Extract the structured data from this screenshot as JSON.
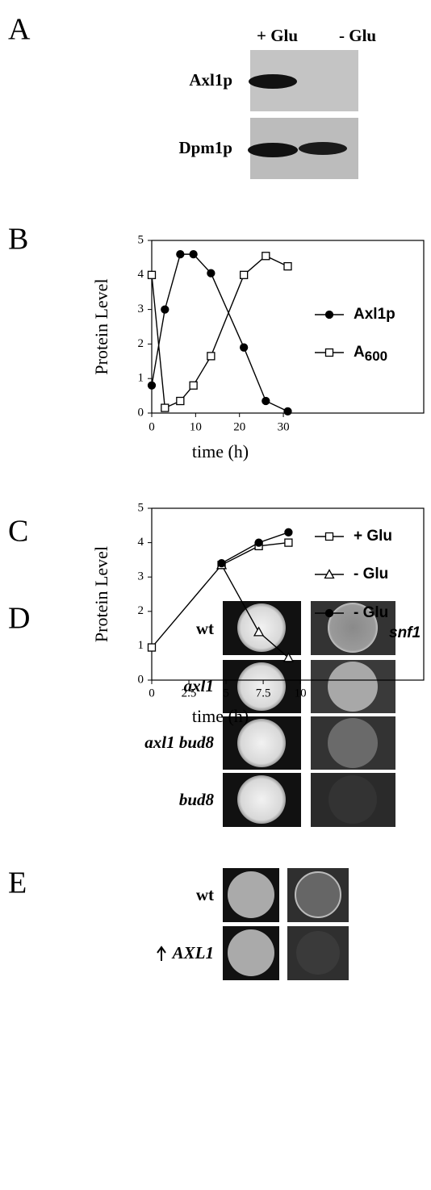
{
  "panels": {
    "a": {
      "letter": "A",
      "lanes": [
        "+ Glu",
        "- Glu"
      ],
      "rows": [
        "Axl1p",
        "Dpm1p"
      ]
    },
    "b": {
      "letter": "B"
    },
    "c": {
      "letter": "C"
    },
    "d": {
      "letter": "D",
      "rows": [
        "wt",
        "axl1",
        "axl1 bud8",
        "bud8"
      ]
    },
    "e": {
      "letter": "E",
      "rows": [
        "wt",
        "AXL1"
      ]
    }
  },
  "chart_data": [
    {
      "type": "line",
      "y_label": "Protein Level",
      "x_label": "time (h)",
      "xlim": [
        0,
        62
      ],
      "xticks": [
        0,
        10,
        20,
        30
      ],
      "ylim": [
        0,
        5
      ],
      "yticks": [
        0,
        1,
        2,
        3,
        4,
        5
      ],
      "series": [
        {
          "name": "Axl1p",
          "marker": "circle-filled",
          "color": "#000000",
          "x": [
            0,
            3,
            6.5,
            9.5,
            13.5,
            21,
            26,
            31
          ],
          "values": [
            0.8,
            3,
            4.6,
            4.6,
            4.05,
            1.9,
            0.35,
            0.05
          ]
        },
        {
          "name": "A",
          "subscript": "600",
          "marker": "square-open",
          "color": "#000000",
          "x": [
            0,
            3,
            6.5,
            9.5,
            13.5,
            21,
            26,
            31
          ],
          "values": [
            4.0,
            0.15,
            0.35,
            0.8,
            1.65,
            4.0,
            4.55,
            4.25
          ]
        }
      ]
    },
    {
      "type": "line",
      "y_label": "Protein Level",
      "x_label": "time (h)",
      "xlim": [
        0,
        18.3
      ],
      "xticks": [
        0,
        2.5,
        5,
        7.5,
        10
      ],
      "ylim": [
        0,
        5
      ],
      "yticks": [
        0,
        1,
        2,
        3,
        4,
        5
      ],
      "series": [
        {
          "name": "+ Glu",
          "marker": "square-open",
          "color": "#000000",
          "x": [
            0,
            4.7,
            7.2,
            9.2
          ],
          "values": [
            0.95,
            3.35,
            3.9,
            4.0
          ]
        },
        {
          "name": "- Glu",
          "marker": "triangle-open",
          "color": "#000000",
          "x": [
            4.7,
            7.2,
            9.2
          ],
          "values": [
            3.35,
            1.4,
            0.65
          ]
        },
        {
          "name": "- Glu",
          "strain": "snf1",
          "marker": "circle-filled",
          "color": "#000000",
          "x": [
            4.7,
            7.2,
            9.2
          ],
          "values": [
            3.4,
            4.0,
            4.3
          ]
        }
      ]
    }
  ]
}
